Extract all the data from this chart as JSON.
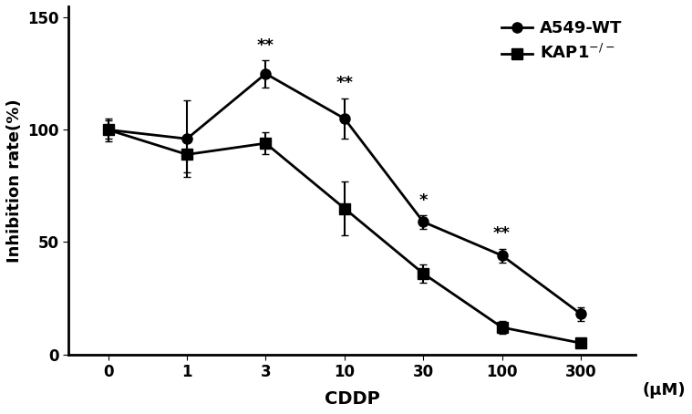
{
  "x_labels": [
    "0",
    "1",
    "3",
    "10",
    "30",
    "100",
    "300"
  ],
  "x_positions": [
    0,
    1,
    2,
    3,
    4,
    5,
    6
  ],
  "wt_values": [
    100,
    96,
    125,
    105,
    59,
    44,
    18
  ],
  "wt_errors": [
    5,
    17,
    6,
    9,
    3,
    3,
    3
  ],
  "kap1_values": [
    100,
    89,
    94,
    65,
    36,
    12,
    5
  ],
  "kap1_errors": [
    4,
    8,
    5,
    12,
    4,
    3,
    2
  ],
  "significance": [
    {
      "x": 2,
      "label": "**"
    },
    {
      "x": 3,
      "label": "**"
    },
    {
      "x": 4,
      "label": "*"
    },
    {
      "x": 5,
      "label": "**"
    }
  ],
  "ylabel": "Inhibition rate(%)",
  "xlabel": "CDDP",
  "xlabel2": "(μM)",
  "ylim": [
    0,
    155
  ],
  "yticks": [
    0,
    50,
    100,
    150
  ],
  "line_color": "#000000",
  "wt_label": "A549-WT",
  "axis_fontsize": 13,
  "tick_fontsize": 12,
  "legend_fontsize": 12,
  "sig_fontsize": 13
}
